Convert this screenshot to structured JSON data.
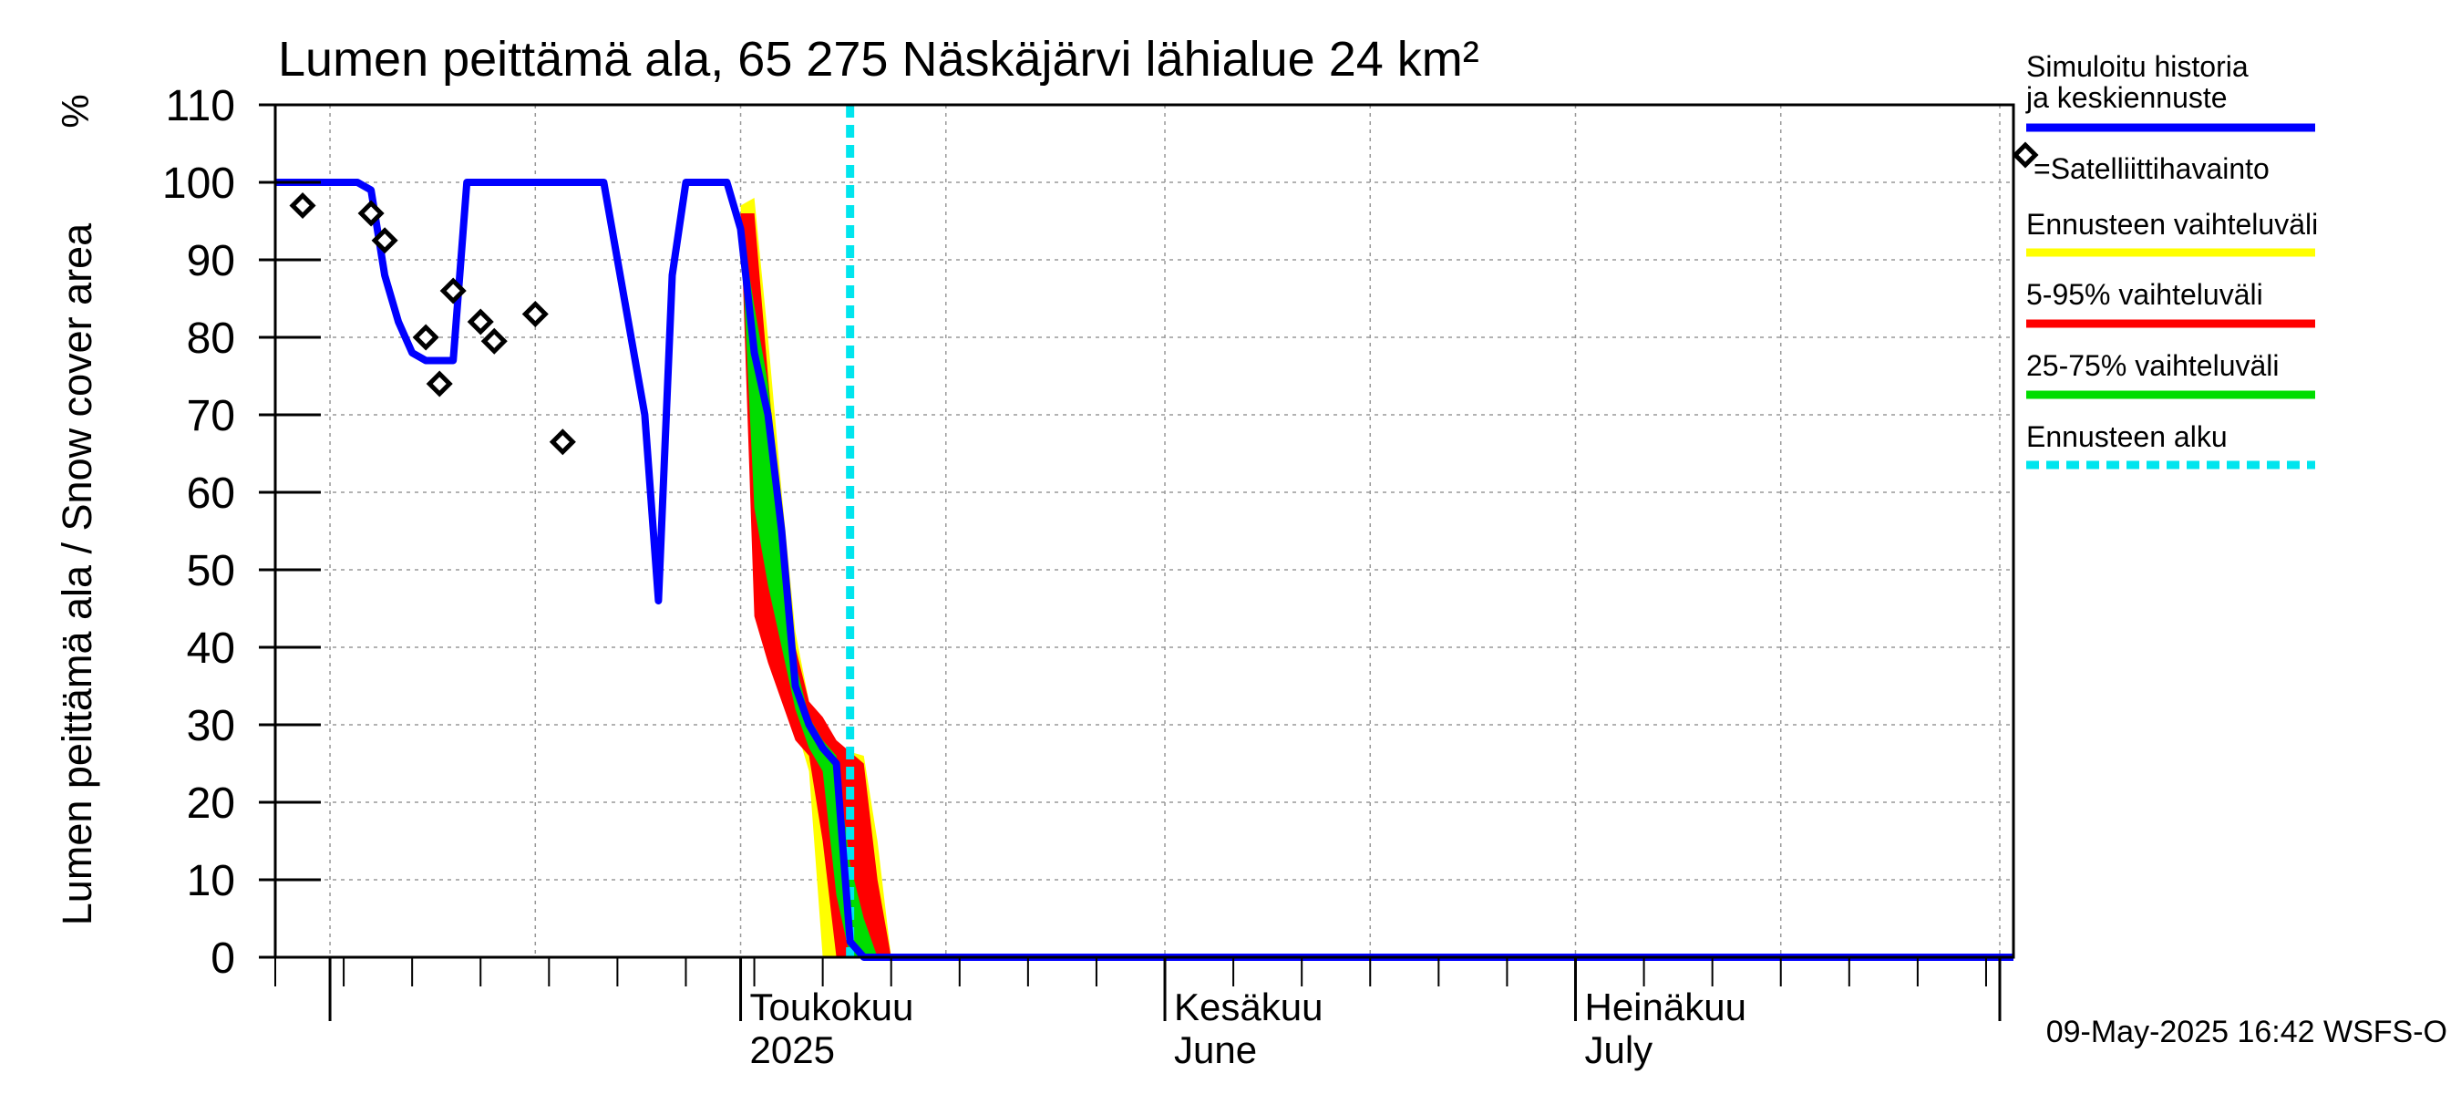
{
  "chart_data": {
    "type": "area",
    "title": "Lumen peittämä ala, 65 275 Näskäjärvi lähialue 24 km²",
    "ylabel": "Lumen peittämä ala / Snow cover area",
    "yunit": "%",
    "ylim": [
      0,
      110
    ],
    "yticks": [
      0,
      10,
      20,
      30,
      40,
      50,
      60,
      70,
      80,
      90,
      100,
      110
    ],
    "xlim": [
      "2025-03-28",
      "2025-08-02"
    ],
    "grid": true,
    "x_tick_labels": [
      {
        "date": "2025-05-01",
        "line1": "Toukokuu",
        "line2": "2025"
      },
      {
        "date": "2025-06-01",
        "line1": "Kesäkuu",
        "line2": "June"
      },
      {
        "date": "2025-07-01",
        "line1": "Heinäkuu",
        "line2": "July"
      }
    ],
    "legend": {
      "placement": "right",
      "entries": [
        {
          "key": "simulated",
          "label": "Simuloitu historia ja keskiennuste",
          "color": "#0000ff",
          "style": "line"
        },
        {
          "key": "satellite",
          "label": "=Satelliittihavainto",
          "color": "#000000",
          "style": "diamond"
        },
        {
          "key": "range",
          "label": "Ennusteen vaihteluväli",
          "color": "#ffff00",
          "style": "line"
        },
        {
          "key": "p5_95",
          "label": "5-95% vaihteluväli",
          "color": "#ff0000",
          "style": "line"
        },
        {
          "key": "p25_75",
          "label": "25-75% vaihteluväli",
          "color": "#00dd00",
          "style": "line"
        },
        {
          "key": "forecast_start",
          "label": "Ennusteen alku",
          "color": "#00e5ee",
          "style": "dashed"
        }
      ]
    },
    "forecast_start": "2025-05-09",
    "series": [
      {
        "key": "simulated",
        "name": "Simuloitu historia ja keskiennuste",
        "color": "#0000ff",
        "points": [
          [
            "2025-03-28",
            100
          ],
          [
            "2025-04-03",
            100
          ],
          [
            "2025-04-04",
            99
          ],
          [
            "2025-04-05",
            88
          ],
          [
            "2025-04-06",
            82
          ],
          [
            "2025-04-07",
            78
          ],
          [
            "2025-04-08",
            77
          ],
          [
            "2025-04-10",
            77
          ],
          [
            "2025-04-11",
            100
          ],
          [
            "2025-04-21",
            100
          ],
          [
            "2025-04-24",
            70
          ],
          [
            "2025-04-25",
            46
          ],
          [
            "2025-04-26",
            88
          ],
          [
            "2025-04-27",
            100
          ],
          [
            "2025-04-30",
            100
          ],
          [
            "2025-05-01",
            94
          ],
          [
            "2025-05-02",
            78
          ],
          [
            "2025-05-03",
            70
          ],
          [
            "2025-05-04",
            55
          ],
          [
            "2025-05-05",
            35
          ],
          [
            "2025-05-06",
            30
          ],
          [
            "2025-05-07",
            27
          ],
          [
            "2025-05-08",
            25
          ],
          [
            "2025-05-09",
            2
          ],
          [
            "2025-05-10",
            0
          ],
          [
            "2025-08-02",
            0
          ]
        ]
      }
    ],
    "bands": [
      {
        "key": "range",
        "name": "Ennusteen vaihteluväli",
        "color": "#ffff00",
        "upper": [
          [
            "2025-05-01",
            97
          ],
          [
            "2025-05-02",
            98
          ],
          [
            "2025-05-03",
            80
          ],
          [
            "2025-05-04",
            60
          ],
          [
            "2025-05-05",
            42
          ],
          [
            "2025-05-06",
            33
          ],
          [
            "2025-05-07",
            29
          ],
          [
            "2025-05-08",
            27
          ],
          [
            "2025-05-10",
            26
          ],
          [
            "2025-05-11",
            15
          ],
          [
            "2025-05-12",
            0
          ]
        ],
        "lower": [
          [
            "2025-05-01",
            97
          ],
          [
            "2025-05-02",
            55
          ],
          [
            "2025-05-03",
            42
          ],
          [
            "2025-05-04",
            36
          ],
          [
            "2025-05-05",
            30
          ],
          [
            "2025-05-06",
            24
          ],
          [
            "2025-05-07",
            0
          ]
        ]
      },
      {
        "key": "p5_95",
        "name": "5-95% vaihteluväli",
        "color": "#ff0000",
        "upper": [
          [
            "2025-05-01",
            96
          ],
          [
            "2025-05-02",
            96
          ],
          [
            "2025-05-03",
            75
          ],
          [
            "2025-05-04",
            55
          ],
          [
            "2025-05-05",
            40
          ],
          [
            "2025-05-06",
            33
          ],
          [
            "2025-05-07",
            31
          ],
          [
            "2025-05-08",
            28
          ],
          [
            "2025-05-10",
            25
          ],
          [
            "2025-05-11",
            10
          ],
          [
            "2025-05-12",
            0
          ]
        ],
        "lower": [
          [
            "2025-05-01",
            96
          ],
          [
            "2025-05-02",
            44
          ],
          [
            "2025-05-03",
            38
          ],
          [
            "2025-05-04",
            33
          ],
          [
            "2025-05-05",
            28
          ],
          [
            "2025-05-06",
            26
          ],
          [
            "2025-05-07",
            15
          ],
          [
            "2025-05-08",
            0
          ]
        ]
      },
      {
        "key": "p25_75",
        "name": "25-75% vaihteluväli",
        "color": "#00dd00",
        "upper": [
          [
            "2025-05-01",
            95
          ],
          [
            "2025-05-02",
            84
          ],
          [
            "2025-05-03",
            74
          ],
          [
            "2025-05-04",
            58
          ],
          [
            "2025-05-05",
            38
          ],
          [
            "2025-05-06",
            31
          ],
          [
            "2025-05-07",
            28
          ],
          [
            "2025-05-08",
            26
          ],
          [
            "2025-05-09",
            12
          ],
          [
            "2025-05-10",
            5
          ],
          [
            "2025-05-11",
            0
          ]
        ],
        "lower": [
          [
            "2025-05-01",
            95
          ],
          [
            "2025-05-02",
            58
          ],
          [
            "2025-05-03",
            48
          ],
          [
            "2025-05-04",
            40
          ],
          [
            "2025-05-05",
            32
          ],
          [
            "2025-05-06",
            27
          ],
          [
            "2025-05-07",
            24
          ],
          [
            "2025-05-08",
            8
          ],
          [
            "2025-05-09",
            0
          ]
        ]
      }
    ],
    "satellite_observations": [
      [
        "2025-03-30",
        97
      ],
      [
        "2025-04-04",
        96
      ],
      [
        "2025-04-05",
        92.5
      ],
      [
        "2025-04-08",
        80
      ],
      [
        "2025-04-09",
        74
      ],
      [
        "2025-04-10",
        86
      ],
      [
        "2025-04-12",
        82
      ],
      [
        "2025-04-13",
        79.5
      ],
      [
        "2025-04-16",
        83
      ],
      [
        "2025-04-18",
        66.5
      ]
    ]
  },
  "footer": {
    "timestamp": "09-May-2025 16:42 WSFS-O"
  }
}
